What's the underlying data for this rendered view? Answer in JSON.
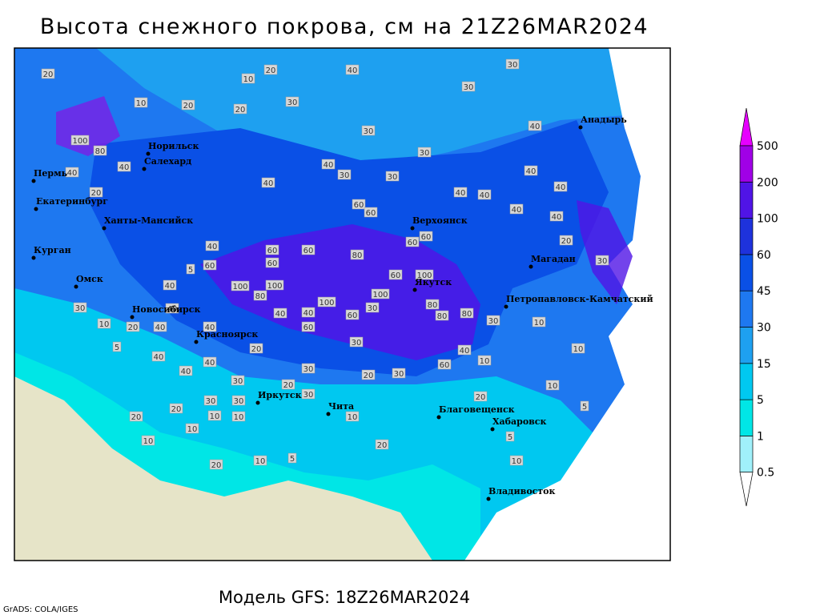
{
  "title": "Высота снежного покрова, см на 21Z26MAR2024",
  "subtitle": "Модель GFS: 18Z26MAR2024",
  "credit": "GrADS: COLA/IGES",
  "legend": {
    "levels": [
      0.5,
      1,
      5,
      15,
      30,
      45,
      60,
      100,
      200,
      500
    ],
    "colors": [
      "#a0f0fa",
      "#00e6e6",
      "#00c8f0",
      "#1ea0f0",
      "#1e78f0",
      "#0a50e6",
      "#1e32dc",
      "#5014e6",
      "#a000e6"
    ],
    "below_color": "#ffffff",
    "above_color": "#e600ff"
  },
  "cities": [
    "Норильск",
    "Салехард",
    "Пермь",
    "Екатеринбург",
    "Ханты-Мансийск",
    "Курган",
    "Омск",
    "Новосибирск",
    "Красноярск",
    "Иркутск",
    "Чита",
    "Благовещенск",
    "Хабаровск",
    "Владивосток",
    "Верхоянск",
    "Якутск",
    "Магадан",
    "Петропавловск-Камчатский",
    "Анадырь"
  ],
  "contour_labels": [
    40,
    30,
    30,
    30,
    30,
    30,
    10,
    20,
    20,
    20,
    10,
    20,
    100,
    80,
    40,
    40,
    20,
    40,
    40,
    30,
    30,
    40,
    40,
    40,
    40,
    40,
    40,
    40,
    20,
    30,
    60,
    60,
    60,
    60,
    60,
    60,
    60,
    80,
    100,
    100,
    80,
    100,
    100,
    100,
    60,
    30,
    60,
    40,
    40,
    60,
    80,
    80,
    80,
    30,
    10,
    10,
    40,
    60,
    30,
    20,
    30,
    30,
    40,
    40,
    40,
    40,
    40,
    40,
    20,
    10,
    5,
    30,
    40,
    60,
    5,
    40,
    20,
    30,
    20,
    10,
    5,
    5,
    10,
    10,
    20,
    10,
    20,
    5,
    10,
    10,
    20,
    20,
    10,
    10,
    30,
    30,
    20,
    30,
    10
  ]
}
